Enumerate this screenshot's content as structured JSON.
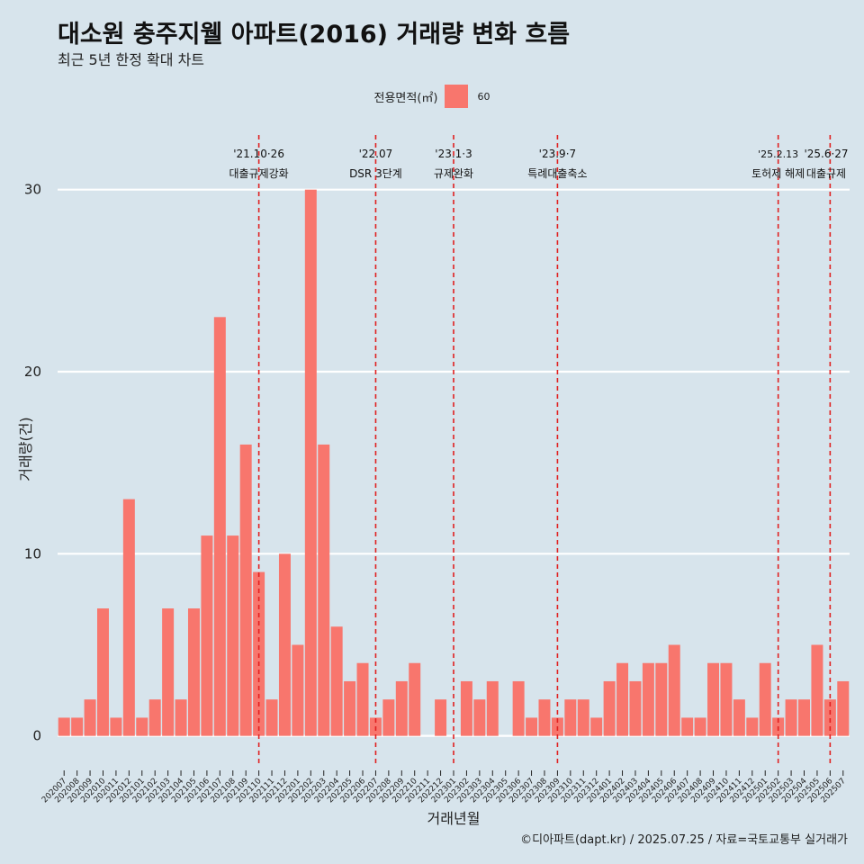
{
  "title": "대소원 충주지웰 아파트(2016) 거래량 변화 흐름",
  "subtitle": "최근 5년 한정 확대 차트",
  "caption": "©디아파트(dapt.kr) / 2025.07.25 / 자료=국토교통부 실거래가",
  "colors": {
    "bar": "#f8766d",
    "event_line": "#e02020",
    "background": "#d7e4ec",
    "grid": "#ffffff"
  },
  "chart_data": {
    "type": "bar",
    "xlabel": "거래년월",
    "ylabel": "거래량(건)",
    "ylim": [
      -1.5,
      33
    ],
    "yticks": [
      0,
      10,
      20,
      30
    ],
    "grid": true,
    "legend": {
      "title": "전용면적(㎡)",
      "position": "top-center",
      "entries": [
        "60"
      ]
    },
    "categories": [
      "202007",
      "202008",
      "202009",
      "202010",
      "202011",
      "202012",
      "202101",
      "202102",
      "202103",
      "202104",
      "202105",
      "202106",
      "202107",
      "202108",
      "202109",
      "202110",
      "202111",
      "202112",
      "202201",
      "202202",
      "202203",
      "202204",
      "202205",
      "202206",
      "202207",
      "202208",
      "202209",
      "202210",
      "202211",
      "202212",
      "202301",
      "202302",
      "202303",
      "202304",
      "202305",
      "202306",
      "202307",
      "202308",
      "202309",
      "202310",
      "202311",
      "202312",
      "202401",
      "202402",
      "202403",
      "202404",
      "202405",
      "202406",
      "202407",
      "202408",
      "202409",
      "202410",
      "202411",
      "202412",
      "202501",
      "202502",
      "202503",
      "202504",
      "202505",
      "202506",
      "202507"
    ],
    "series": [
      {
        "name": "60",
        "values": [
          1,
          1,
          2,
          7,
          1,
          13,
          1,
          2,
          7,
          2,
          7,
          11,
          23,
          11,
          16,
          9,
          2,
          10,
          5,
          30,
          16,
          6,
          3,
          4,
          1,
          2,
          3,
          4,
          0,
          2,
          0,
          3,
          2,
          3,
          0,
          3,
          1,
          2,
          1,
          2,
          2,
          1,
          3,
          4,
          3,
          4,
          4,
          5,
          1,
          1,
          4,
          4,
          2,
          1,
          4,
          1,
          2,
          2,
          5,
          2,
          3
        ]
      }
    ],
    "events": [
      {
        "x": "202110",
        "date": "'21.10·26",
        "label": "대출규제강화"
      },
      {
        "x": "202207",
        "date": "'22.07",
        "label": "DSR 3단계"
      },
      {
        "x": "202301",
        "date": "'23.1·3",
        "label": "규제완화"
      },
      {
        "x": "202309",
        "date": "'23.9·7",
        "label": "특례대출축소"
      },
      {
        "x": "202502",
        "date": "'25.2.13",
        "label": "토허제 해제"
      },
      {
        "x": "202506",
        "date": "'25.6·27",
        "label": "대출규제"
      }
    ]
  }
}
